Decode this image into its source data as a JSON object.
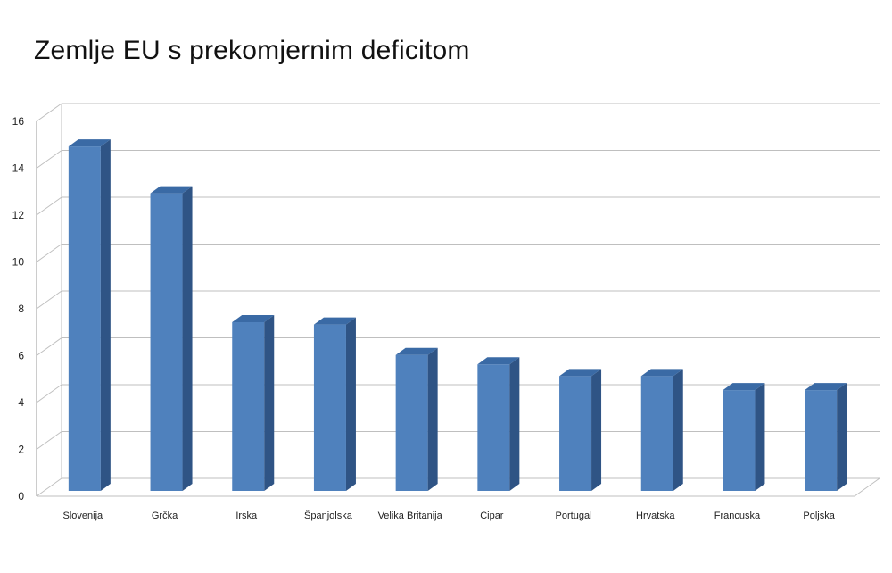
{
  "chart_data": {
    "type": "bar",
    "title": "Zemlje EU s prekomjernim deficitom",
    "xlabel": "",
    "ylabel": "",
    "categories": [
      "Slovenija",
      "Grčka",
      "Irska",
      "Španjolska",
      "Velika Britanija",
      "Cipar",
      "Portugal",
      "Hrvatska",
      "Francuska",
      "Poljska"
    ],
    "values": [
      14.7,
      12.7,
      7.2,
      7.1,
      5.8,
      5.4,
      4.9,
      4.9,
      4.3,
      4.3
    ],
    "ylim": [
      0,
      16
    ],
    "yticks": [
      0,
      2,
      4,
      6,
      8,
      10,
      12,
      14,
      16
    ],
    "grid": true,
    "legend": "none",
    "colors": {
      "bar_front": "#4F81BD",
      "bar_side": "#2F5485",
      "bar_top": "#3A6AA5",
      "grid": "#bfbfbf"
    }
  }
}
